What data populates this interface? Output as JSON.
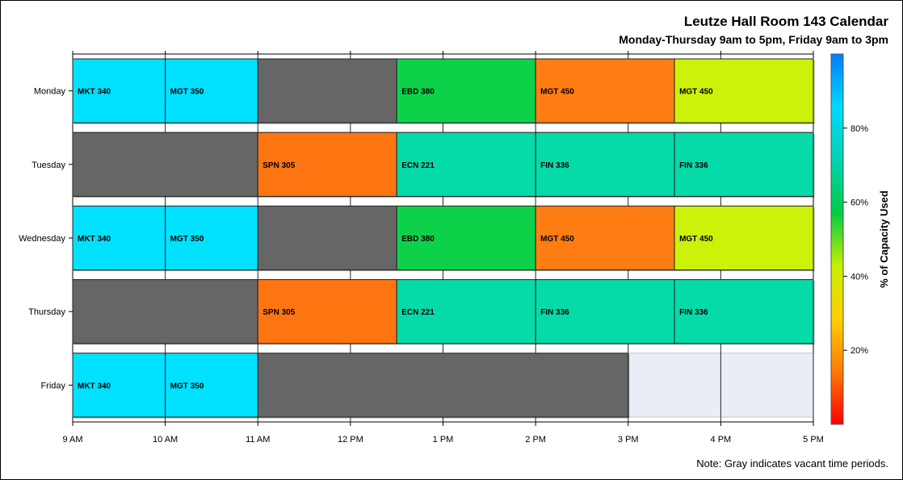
{
  "title": "Leutze Hall Room 143 Calendar",
  "subtitle": "Monday-Thursday 9am to 5pm, Friday 9am to 3pm",
  "note": "Note: Gray indicates vacant time periods.",
  "colors": {
    "vacant": "#666666",
    "closed_background": "#e9edf6",
    "row_background": "#e9edf6"
  },
  "chart_data": {
    "type": "gantt",
    "x_axis": {
      "range_hours": [
        9,
        17
      ],
      "tick_values": [
        9,
        10,
        11,
        12,
        13,
        14,
        15,
        16,
        17
      ],
      "tick_labels": [
        "9 AM",
        "10 AM",
        "11 AM",
        "12 PM",
        "1 PM",
        "2 PM",
        "3 PM",
        "4 PM",
        "5 PM"
      ]
    },
    "rows": [
      "Monday",
      "Tuesday",
      "Wednesday",
      "Thursday",
      "Friday"
    ],
    "legend": {
      "title": "% of Capacity Used",
      "range": [
        0,
        100
      ],
      "ticks": [
        20,
        40,
        60,
        80
      ],
      "tick_labels": [
        "20%",
        "40%",
        "60%",
        "80%"
      ],
      "gradient": [
        "#ff0000",
        "#ff7b00",
        "#ffd000",
        "#c7f000",
        "#00cc44",
        "#00d2b0",
        "#00d9ff",
        "#007dff"
      ]
    },
    "blocks": [
      {
        "day": "Monday",
        "start": 9,
        "end": 10,
        "label": "MKT 340",
        "color": "#00e1ff"
      },
      {
        "day": "Monday",
        "start": 10,
        "end": 11,
        "label": "MGT 350",
        "color": "#00e1ff"
      },
      {
        "day": "Monday",
        "start": 11,
        "end": 12.5,
        "label": "",
        "color": "#666666"
      },
      {
        "day": "Monday",
        "start": 12.5,
        "end": 14,
        "label": "EBD 380",
        "color": "#0ed14a"
      },
      {
        "day": "Monday",
        "start": 14,
        "end": 15.5,
        "label": "MGT 450",
        "color": "#ff7d12"
      },
      {
        "day": "Monday",
        "start": 15.5,
        "end": 17,
        "label": "MGT 450",
        "color": "#ccf20a"
      },
      {
        "day": "Tuesday",
        "start": 9,
        "end": 11,
        "label": "",
        "color": "#666666"
      },
      {
        "day": "Tuesday",
        "start": 11,
        "end": 12.5,
        "label": "SPN 305",
        "color": "#ff7512"
      },
      {
        "day": "Tuesday",
        "start": 12.5,
        "end": 14,
        "label": "ECN 221",
        "color": "#05dba8"
      },
      {
        "day": "Tuesday",
        "start": 14,
        "end": 15.5,
        "label": "FIN 336",
        "color": "#05dba8"
      },
      {
        "day": "Tuesday",
        "start": 15.5,
        "end": 17,
        "label": "FIN 336",
        "color": "#05dba8"
      },
      {
        "day": "Wednesday",
        "start": 9,
        "end": 10,
        "label": "MKT 340",
        "color": "#00e1ff"
      },
      {
        "day": "Wednesday",
        "start": 10,
        "end": 11,
        "label": "MGT 350",
        "color": "#00e1ff"
      },
      {
        "day": "Wednesday",
        "start": 11,
        "end": 12.5,
        "label": "",
        "color": "#666666"
      },
      {
        "day": "Wednesday",
        "start": 12.5,
        "end": 14,
        "label": "EBD 380",
        "color": "#0ed14a"
      },
      {
        "day": "Wednesday",
        "start": 14,
        "end": 15.5,
        "label": "MGT 450",
        "color": "#ff7d12"
      },
      {
        "day": "Wednesday",
        "start": 15.5,
        "end": 17,
        "label": "MGT 450",
        "color": "#ccf20a"
      },
      {
        "day": "Thursday",
        "start": 9,
        "end": 11,
        "label": "",
        "color": "#666666"
      },
      {
        "day": "Thursday",
        "start": 11,
        "end": 12.5,
        "label": "SPN 305",
        "color": "#ff7512"
      },
      {
        "day": "Thursday",
        "start": 12.5,
        "end": 14,
        "label": "ECN 221",
        "color": "#05dba8"
      },
      {
        "day": "Thursday",
        "start": 14,
        "end": 15.5,
        "label": "FIN 336",
        "color": "#05dba8"
      },
      {
        "day": "Thursday",
        "start": 15.5,
        "end": 17,
        "label": "FIN 336",
        "color": "#05dba8"
      },
      {
        "day": "Friday",
        "start": 9,
        "end": 10,
        "label": "MKT 340",
        "color": "#00e1ff"
      },
      {
        "day": "Friday",
        "start": 10,
        "end": 11,
        "label": "MGT 350",
        "color": "#00e1ff"
      },
      {
        "day": "Friday",
        "start": 11,
        "end": 15,
        "label": "",
        "color": "#666666"
      }
    ]
  }
}
